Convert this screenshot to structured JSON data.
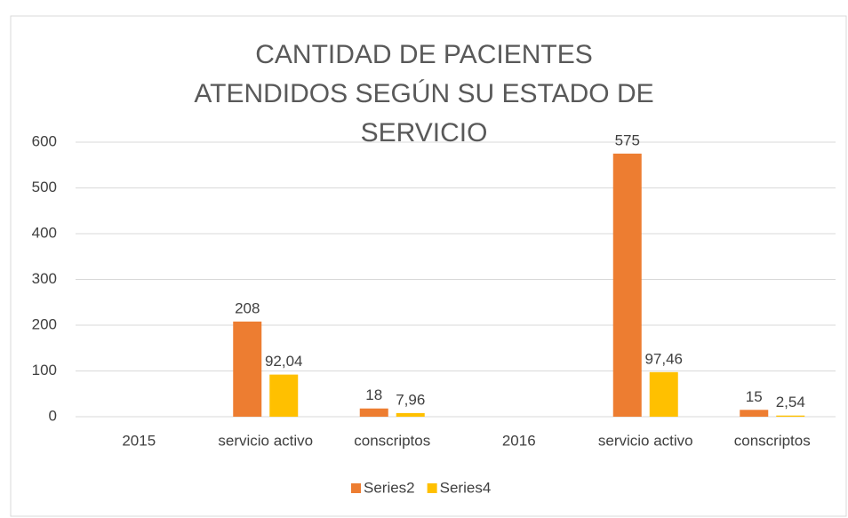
{
  "chart_data": {
    "type": "bar",
    "title": "CANTIDAD DE PACIENTES ATENDIDOS SEGÚN SU ESTADO DE SERVICIO",
    "categories": [
      "2015",
      "servicio activo",
      "conscriptos",
      "2016",
      "servicio activo",
      "conscriptos"
    ],
    "series": [
      {
        "name": "Series2",
        "color": "#ed7d31",
        "values": [
          null,
          208,
          18,
          null,
          575,
          15
        ]
      },
      {
        "name": "Series4",
        "color": "#ffc000",
        "values": [
          null,
          92.04,
          7.96,
          null,
          97.46,
          2.54
        ],
        "value_labels": [
          null,
          "92,04",
          "7,96",
          null,
          "97,46",
          "2,54"
        ]
      }
    ],
    "ylim": [
      0,
      600
    ],
    "yticks": [
      0,
      100,
      200,
      300,
      400,
      500,
      600
    ],
    "grid": true,
    "legend": "bottom"
  }
}
